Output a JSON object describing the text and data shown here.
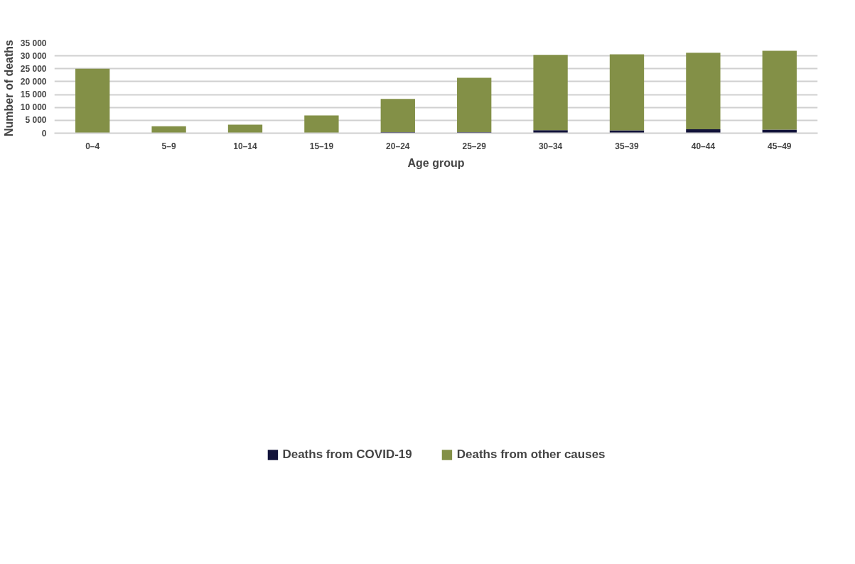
{
  "chart_data": {
    "type": "bar",
    "stacked": true,
    "xlabel": "Age group",
    "ylabel": "Number of deaths",
    "categories": [
      "0–4",
      "5–9",
      "10–14",
      "15–19",
      "20–24",
      "25–29",
      "30–34",
      "35–39",
      "40–44",
      "45–49"
    ],
    "series": [
      {
        "name": "Deaths from COVID-19",
        "color": "#12133a",
        "values": [
          0,
          0,
          0,
          0,
          400,
          400,
          1200,
          1100,
          1500,
          1400
        ]
      },
      {
        "name": "Deaths from other causes",
        "color": "#839047",
        "values": [
          25000,
          2700,
          3300,
          6900,
          12900,
          21100,
          29200,
          29500,
          29700,
          30600
        ]
      }
    ],
    "ylim": [
      0,
      35000
    ],
    "yticks": [
      0,
      {
        "value": 5000,
        "label": "5 000"
      },
      {
        "value": 10000,
        "label": "10 000"
      },
      {
        "value": 15000,
        "label": "15 000"
      },
      {
        "value": 20000,
        "label": "20 000"
      },
      {
        "value": 25000,
        "label": "25 000"
      },
      {
        "value": 30000,
        "label": "30 000"
      },
      {
        "value": 35000,
        "label": "35 000"
      }
    ],
    "grid": "y",
    "legend": "bottom"
  }
}
